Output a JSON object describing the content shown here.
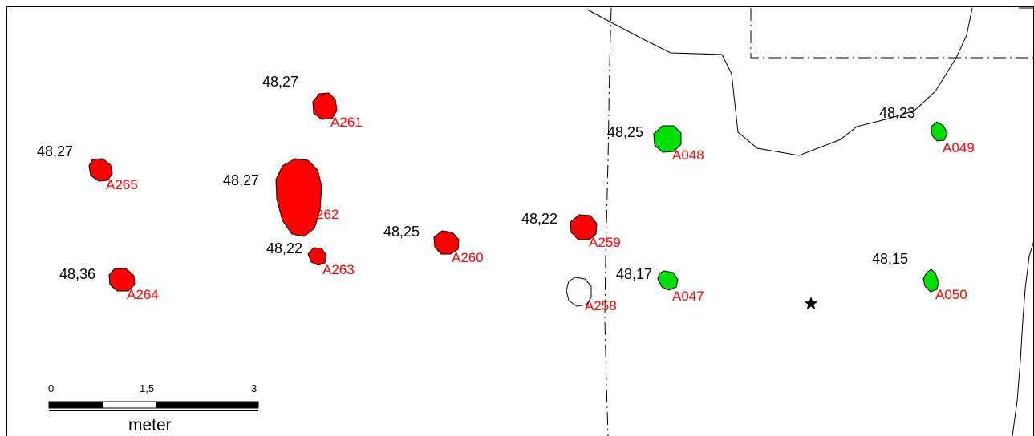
{
  "colors": {
    "background": "#ffffff",
    "frame": "#000000",
    "feature_red": "#ff0000",
    "feature_green": "#00e000",
    "feature_empty": "#ffffff",
    "label_red": "#ff0000",
    "elevation_text": "#000000",
    "outline": "#000000"
  },
  "features": [
    {
      "id": "A261",
      "label": "A261",
      "elevation": "48,27",
      "fill": "red"
    },
    {
      "id": "A265",
      "label": "A265",
      "elevation": "48,27",
      "fill": "red"
    },
    {
      "id": "A262",
      "label": "262",
      "elevation": "48,27",
      "fill": "red"
    },
    {
      "id": "A263",
      "label": "A263",
      "elevation": "48,22",
      "fill": "red"
    },
    {
      "id": "A264",
      "label": "A264",
      "elevation": "48,36",
      "fill": "red"
    },
    {
      "id": "A260",
      "label": "A260",
      "elevation": "48,25",
      "fill": "red"
    },
    {
      "id": "A259",
      "label": "A259",
      "elevation": "48,22",
      "fill": "red"
    },
    {
      "id": "A258",
      "label": "A258",
      "elevation": "",
      "fill": "empty"
    },
    {
      "id": "A048",
      "label": "A048",
      "elevation": "48,25",
      "fill": "green"
    },
    {
      "id": "A047",
      "label": "A047",
      "elevation": "48,17",
      "fill": "green"
    },
    {
      "id": "A049",
      "label": "A049",
      "elevation": "48,23",
      "fill": "green"
    },
    {
      "id": "A050",
      "label": "A050",
      "elevation": "48,15",
      "fill": "green"
    }
  ],
  "marker": {
    "icon": "star-icon"
  },
  "scale_bar": {
    "ticks": [
      "0",
      "1,5",
      "3"
    ],
    "unit": "meter"
  }
}
